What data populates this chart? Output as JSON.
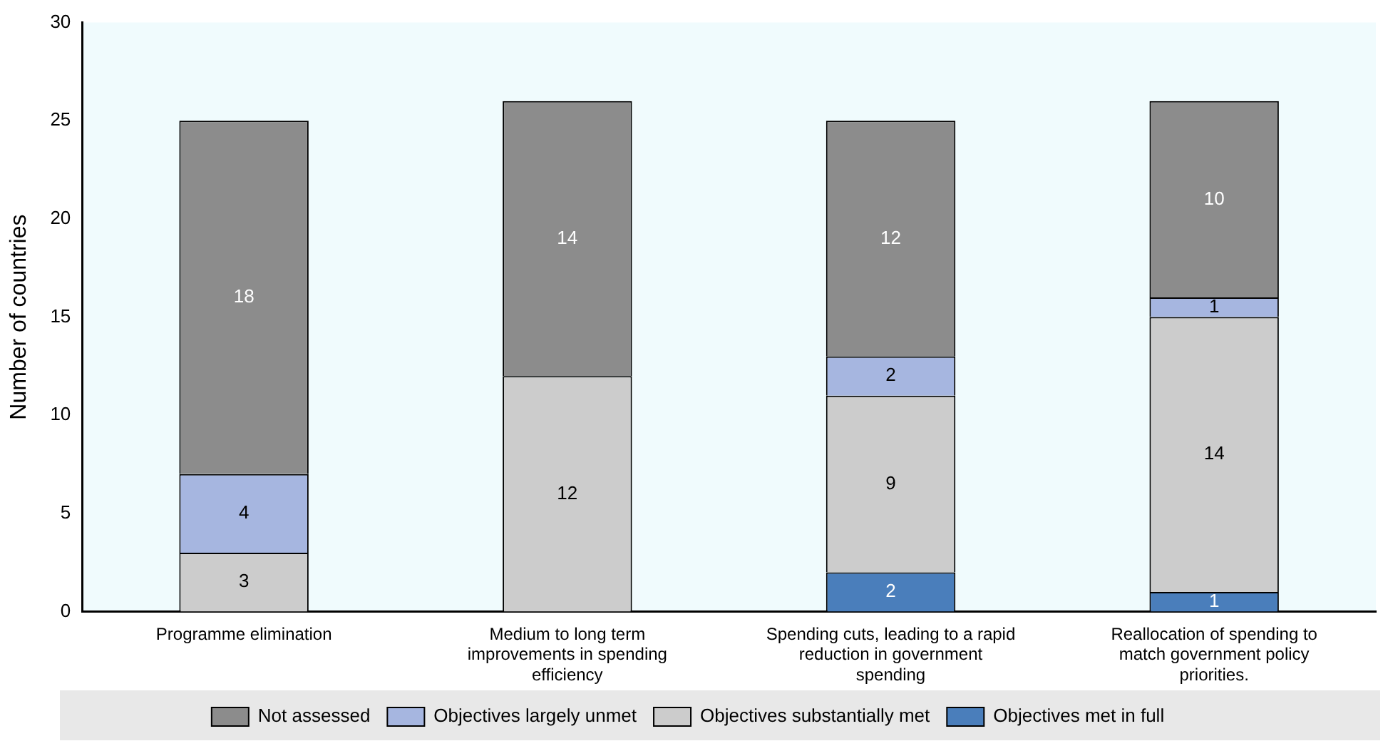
{
  "chart_data": {
    "type": "bar",
    "stacked": true,
    "ylabel": "Number of countries",
    "categories": [
      "Programme elimination",
      "Medium to long term improvements in spending efficiency",
      "Spending cuts, leading to a rapid reduction in government spending",
      "Reallocation of spending to match government policy priorities."
    ],
    "series": [
      {
        "name": "Objectives met in full",
        "color": "#4a7ebb",
        "values": [
          null,
          null,
          2,
          1
        ]
      },
      {
        "name": "Objectives substantially met",
        "color": "#cccccc",
        "values": [
          3,
          12,
          9,
          14
        ]
      },
      {
        "name": "Objectives largely unmet",
        "color": "#a6b6e0",
        "values": [
          4,
          null,
          2,
          1
        ]
      },
      {
        "name": "Not assessed",
        "color": "#8c8c8c",
        "values": [
          18,
          14,
          12,
          10
        ]
      }
    ],
    "ylim": [
      0,
      30
    ],
    "yticks": [
      0,
      5,
      10,
      15,
      20,
      25,
      30
    ],
    "grid": false,
    "legend": "bottom",
    "data_labels": true
  }
}
